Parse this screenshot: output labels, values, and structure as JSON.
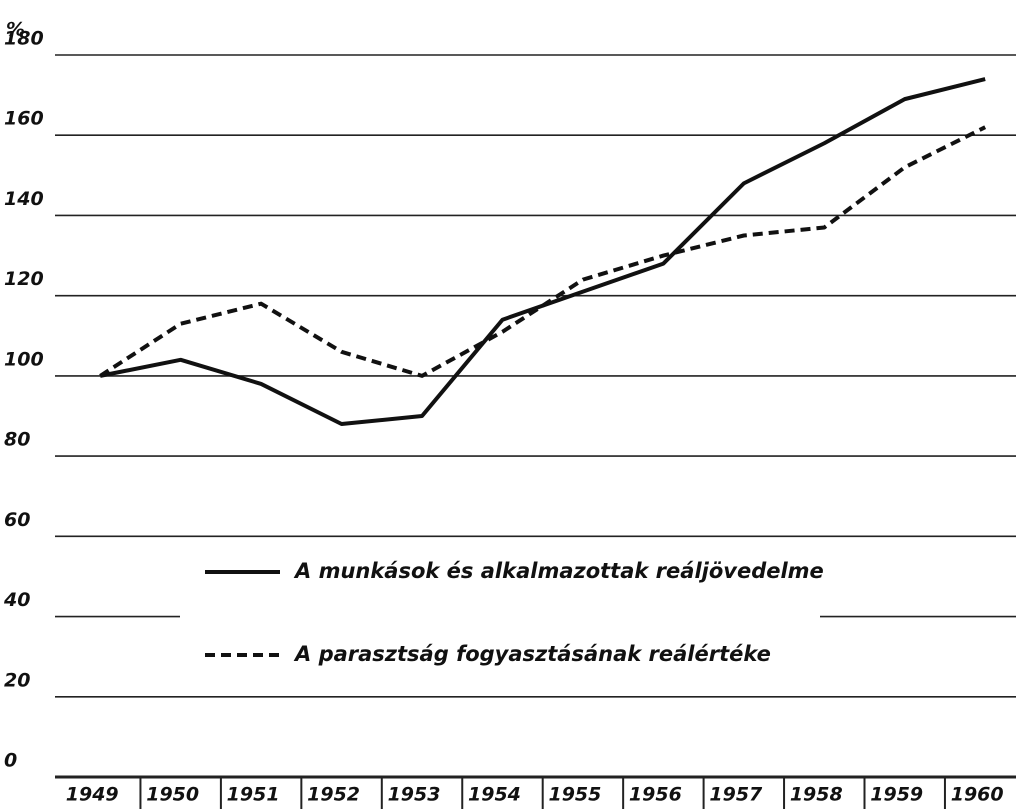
{
  "chart_data": {
    "type": "line",
    "ylabel": "%",
    "categories": [
      "1949",
      "1950",
      "1951",
      "1952",
      "1953",
      "1954",
      "1955",
      "1956",
      "1957",
      "1958",
      "1959",
      "1960"
    ],
    "series": [
      {
        "name": "A munkások és alkalmazottak reáljövedelme",
        "color": "#111111",
        "style": "solid",
        "values": [
          100,
          104,
          98,
          88,
          90,
          114,
          121,
          128,
          148,
          158,
          169,
          174
        ]
      },
      {
        "name": "A parasztság fogyasztásának reálértéke",
        "color": "#111111",
        "style": "dashed",
        "values": [
          100,
          113,
          118,
          106,
          100,
          111,
          124,
          130,
          135,
          137,
          152,
          162
        ]
      }
    ],
    "ylim": [
      0,
      180
    ],
    "yticks": [
      0,
      20,
      40,
      60,
      80,
      100,
      120,
      140,
      160,
      180
    ],
    "grid": true
  }
}
